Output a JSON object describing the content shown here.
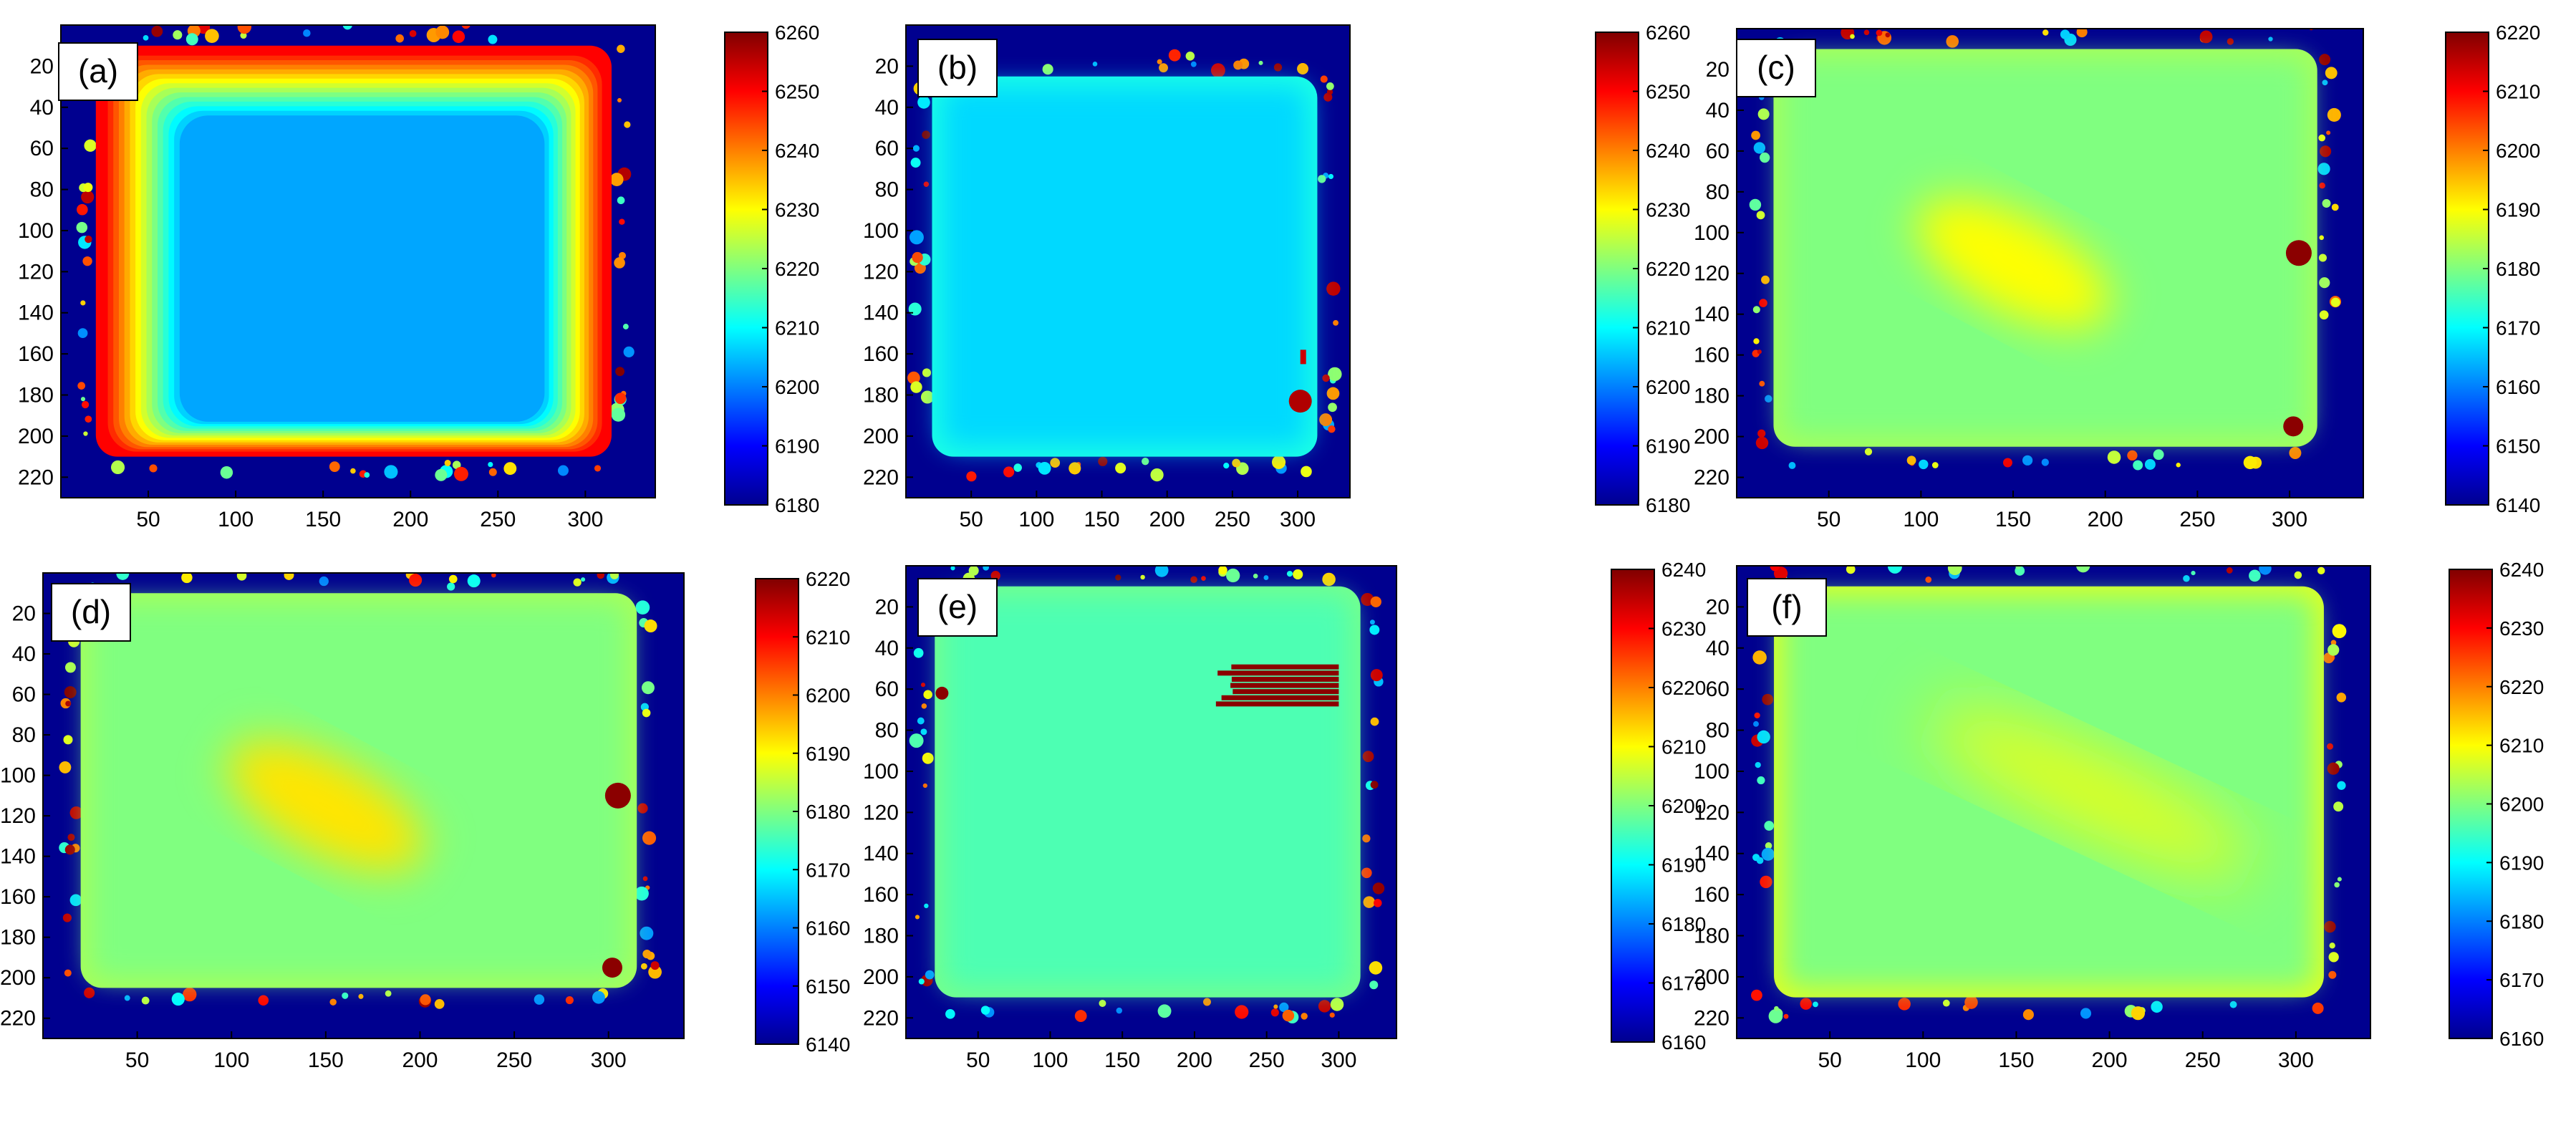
{
  "figure": {
    "panels_layout": "2 rows x 3 columns",
    "colormap": "jet"
  },
  "chart_data": [
    {
      "type": "heatmap",
      "label": "(a)",
      "xticks": [
        50,
        100,
        150,
        200,
        250,
        300
      ],
      "yticks": [
        20,
        40,
        60,
        80,
        100,
        120,
        140,
        160,
        180,
        200,
        220
      ],
      "xlim": [
        0,
        340
      ],
      "ylim": [
        0,
        230
      ],
      "colorbar": {
        "min": 6180,
        "max": 6260,
        "ticks": [
          6180,
          6190,
          6200,
          6210,
          6220,
          6230,
          6240,
          6250,
          6260
        ]
      },
      "features": {
        "plate_x": [
          20,
          315
        ],
        "plate_y": [
          10,
          210
        ],
        "interior_value": 6203,
        "edge_band_value": 6250
      }
    },
    {
      "type": "heatmap",
      "label": "(b)",
      "xticks": [
        50,
        100,
        150,
        200,
        250,
        300
      ],
      "yticks": [
        20,
        40,
        60,
        80,
        100,
        120,
        140,
        160,
        180,
        200,
        220
      ],
      "xlim": [
        0,
        340
      ],
      "ylim": [
        0,
        230
      ],
      "colorbar": {
        "min": 6180,
        "max": 6260,
        "ticks": [
          6180,
          6190,
          6200,
          6210,
          6220,
          6230,
          6240,
          6250,
          6260
        ]
      },
      "features": {
        "plate_x": [
          20,
          315
        ],
        "plate_y": [
          25,
          210
        ],
        "interior_value": 6207,
        "edge_band_value": 6212
      }
    },
    {
      "type": "heatmap",
      "label": "(c)",
      "xticks": [
        50,
        100,
        150,
        200,
        250,
        300
      ],
      "yticks": [
        20,
        40,
        60,
        80,
        100,
        120,
        140,
        160,
        180,
        200,
        220
      ],
      "xlim": [
        0,
        340
      ],
      "ylim": [
        0,
        230
      ],
      "colorbar": {
        "min": 6140,
        "max": 6220,
        "ticks": [
          6140,
          6150,
          6160,
          6170,
          6180,
          6190,
          6200,
          6210,
          6220
        ]
      },
      "features": {
        "plate_x": [
          20,
          315
        ],
        "plate_y": [
          10,
          205
        ],
        "interior_value": 6180,
        "hotspot_value": 6190
      }
    },
    {
      "type": "heatmap",
      "label": "(d)",
      "xticks": [
        50,
        100,
        150,
        200,
        250,
        300
      ],
      "yticks": [
        20,
        40,
        60,
        80,
        100,
        120,
        140,
        160,
        180,
        200,
        220
      ],
      "xlim": [
        0,
        340
      ],
      "ylim": [
        0,
        230
      ],
      "colorbar": {
        "min": 6140,
        "max": 6220,
        "ticks": [
          6140,
          6150,
          6160,
          6170,
          6180,
          6190,
          6200,
          6210,
          6220
        ]
      },
      "features": {
        "plate_x": [
          20,
          315
        ],
        "plate_y": [
          10,
          205
        ],
        "interior_value": 6180,
        "hotspot_value": 6192
      }
    },
    {
      "type": "heatmap",
      "label": "(e)",
      "xticks": [
        50,
        100,
        150,
        200,
        250,
        300
      ],
      "yticks": [
        20,
        40,
        60,
        80,
        100,
        120,
        140,
        160,
        180,
        200,
        220
      ],
      "xlim": [
        0,
        340
      ],
      "ylim": [
        0,
        230
      ],
      "colorbar": {
        "min": 6160,
        "max": 6240,
        "ticks": [
          6160,
          6170,
          6180,
          6190,
          6200,
          6210,
          6220,
          6230,
          6240
        ]
      },
      "features": {
        "plate_x": [
          20,
          315
        ],
        "plate_y": [
          10,
          210
        ],
        "interior_value": 6196,
        "streak_value": 6240
      }
    },
    {
      "type": "heatmap",
      "label": "(f)",
      "xticks": [
        50,
        100,
        150,
        200,
        250,
        300
      ],
      "yticks": [
        20,
        40,
        60,
        80,
        100,
        120,
        140,
        160,
        180,
        200,
        220
      ],
      "xlim": [
        0,
        340
      ],
      "ylim": [
        0,
        230
      ],
      "colorbar": {
        "min": 6160,
        "max": 6240,
        "ticks": [
          6160,
          6170,
          6180,
          6190,
          6200,
          6210,
          6220,
          6230,
          6240
        ]
      },
      "features": {
        "plate_x": [
          20,
          315
        ],
        "plate_y": [
          10,
          210
        ],
        "interior_value": 6200,
        "edge_band_value": 6207
      }
    }
  ]
}
